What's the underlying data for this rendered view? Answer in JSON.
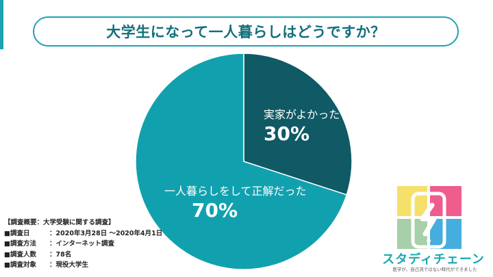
{
  "title": "大学生になって一人暮らしはどうですか？",
  "chart_data": {
    "type": "pie",
    "slices": [
      {
        "label": "実家がよかった",
        "value": 30,
        "value_label": "30%",
        "color": "#0f5a64"
      },
      {
        "label": "一人暮らしをして正解だった",
        "value": 70,
        "value_label": "70%",
        "color": "#11a1ae"
      }
    ]
  },
  "survey": {
    "heading": "【調査概要：大学受験に関する調査】",
    "rows": [
      {
        "key": "■調査日",
        "value": "：2020年3月28日 〜2020年4月1日"
      },
      {
        "key": "■調査方法",
        "value": "：インターネット調査"
      },
      {
        "key": "■調査人数",
        "value": "：78名"
      },
      {
        "key": "■調査対象",
        "value": "：現役大学生"
      }
    ]
  },
  "logo": {
    "name": "スタディチェーン",
    "tagline": "医学が、自己流ではない時代ができました",
    "colors": {
      "yellow": "#f5e06a",
      "pink": "#ee5d8c",
      "green": "#a7cfa9",
      "blue": "#45aede",
      "teal": "#19a7b4"
    }
  },
  "colors": {
    "accent": "#1ba3b0",
    "title": "#126f79"
  }
}
